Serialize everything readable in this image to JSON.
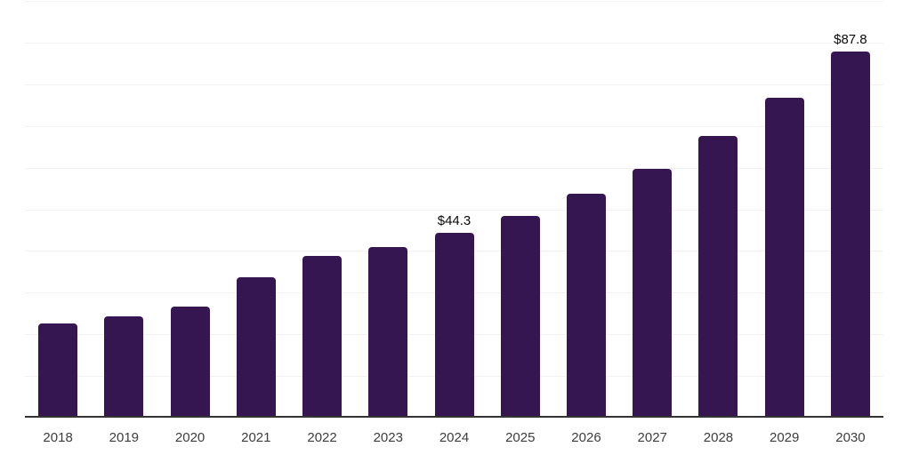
{
  "chart_data": {
    "type": "bar",
    "title": "",
    "xlabel": "",
    "ylabel": "",
    "categories": [
      "2018",
      "2019",
      "2020",
      "2021",
      "2022",
      "2023",
      "2024",
      "2025",
      "2026",
      "2027",
      "2028",
      "2029",
      "2030"
    ],
    "values": [
      22.5,
      24.3,
      26.7,
      33.7,
      38.8,
      41.0,
      44.3,
      48.4,
      53.7,
      59.8,
      67.5,
      76.8,
      87.8
    ],
    "data_labels": {
      "2024": "$44.3",
      "2030": "$87.8"
    },
    "ylim": [
      0,
      100
    ],
    "gridline_step": 10,
    "grid": true,
    "legend": false,
    "y_axis_labels_visible": false,
    "colors": {
      "bar": "#361650",
      "gridline": "#f2f2f2",
      "axis": "#333333",
      "tick_label": "#3d3d3d",
      "data_label": "#0a0a0a",
      "background": "#ffffff"
    }
  }
}
